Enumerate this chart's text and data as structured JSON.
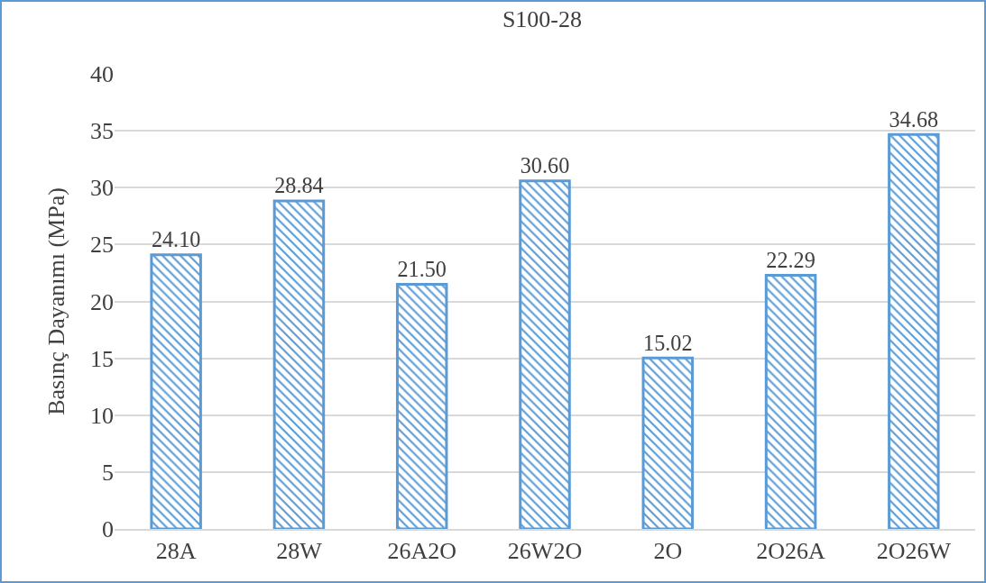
{
  "chart_data": {
    "type": "bar",
    "title": "S100-28",
    "ylabel": "Basınç Dayanımı (MPa)",
    "categories": [
      "28A",
      "28W",
      "26A2O",
      "26W2O",
      "2O",
      "2O26A",
      "2O26W"
    ],
    "values": [
      24.1,
      28.84,
      21.5,
      30.6,
      15.02,
      22.29,
      34.68
    ],
    "value_labels": [
      "24.10",
      "28.84",
      "21.50",
      "30.60",
      "15.02",
      "22.29",
      "34.68"
    ],
    "color": "#5b9bd5",
    "ylim": [
      0,
      40
    ],
    "yticks": [
      0,
      5,
      10,
      15,
      20,
      25,
      30,
      35,
      40
    ],
    "grid": "y",
    "legend": false
  }
}
